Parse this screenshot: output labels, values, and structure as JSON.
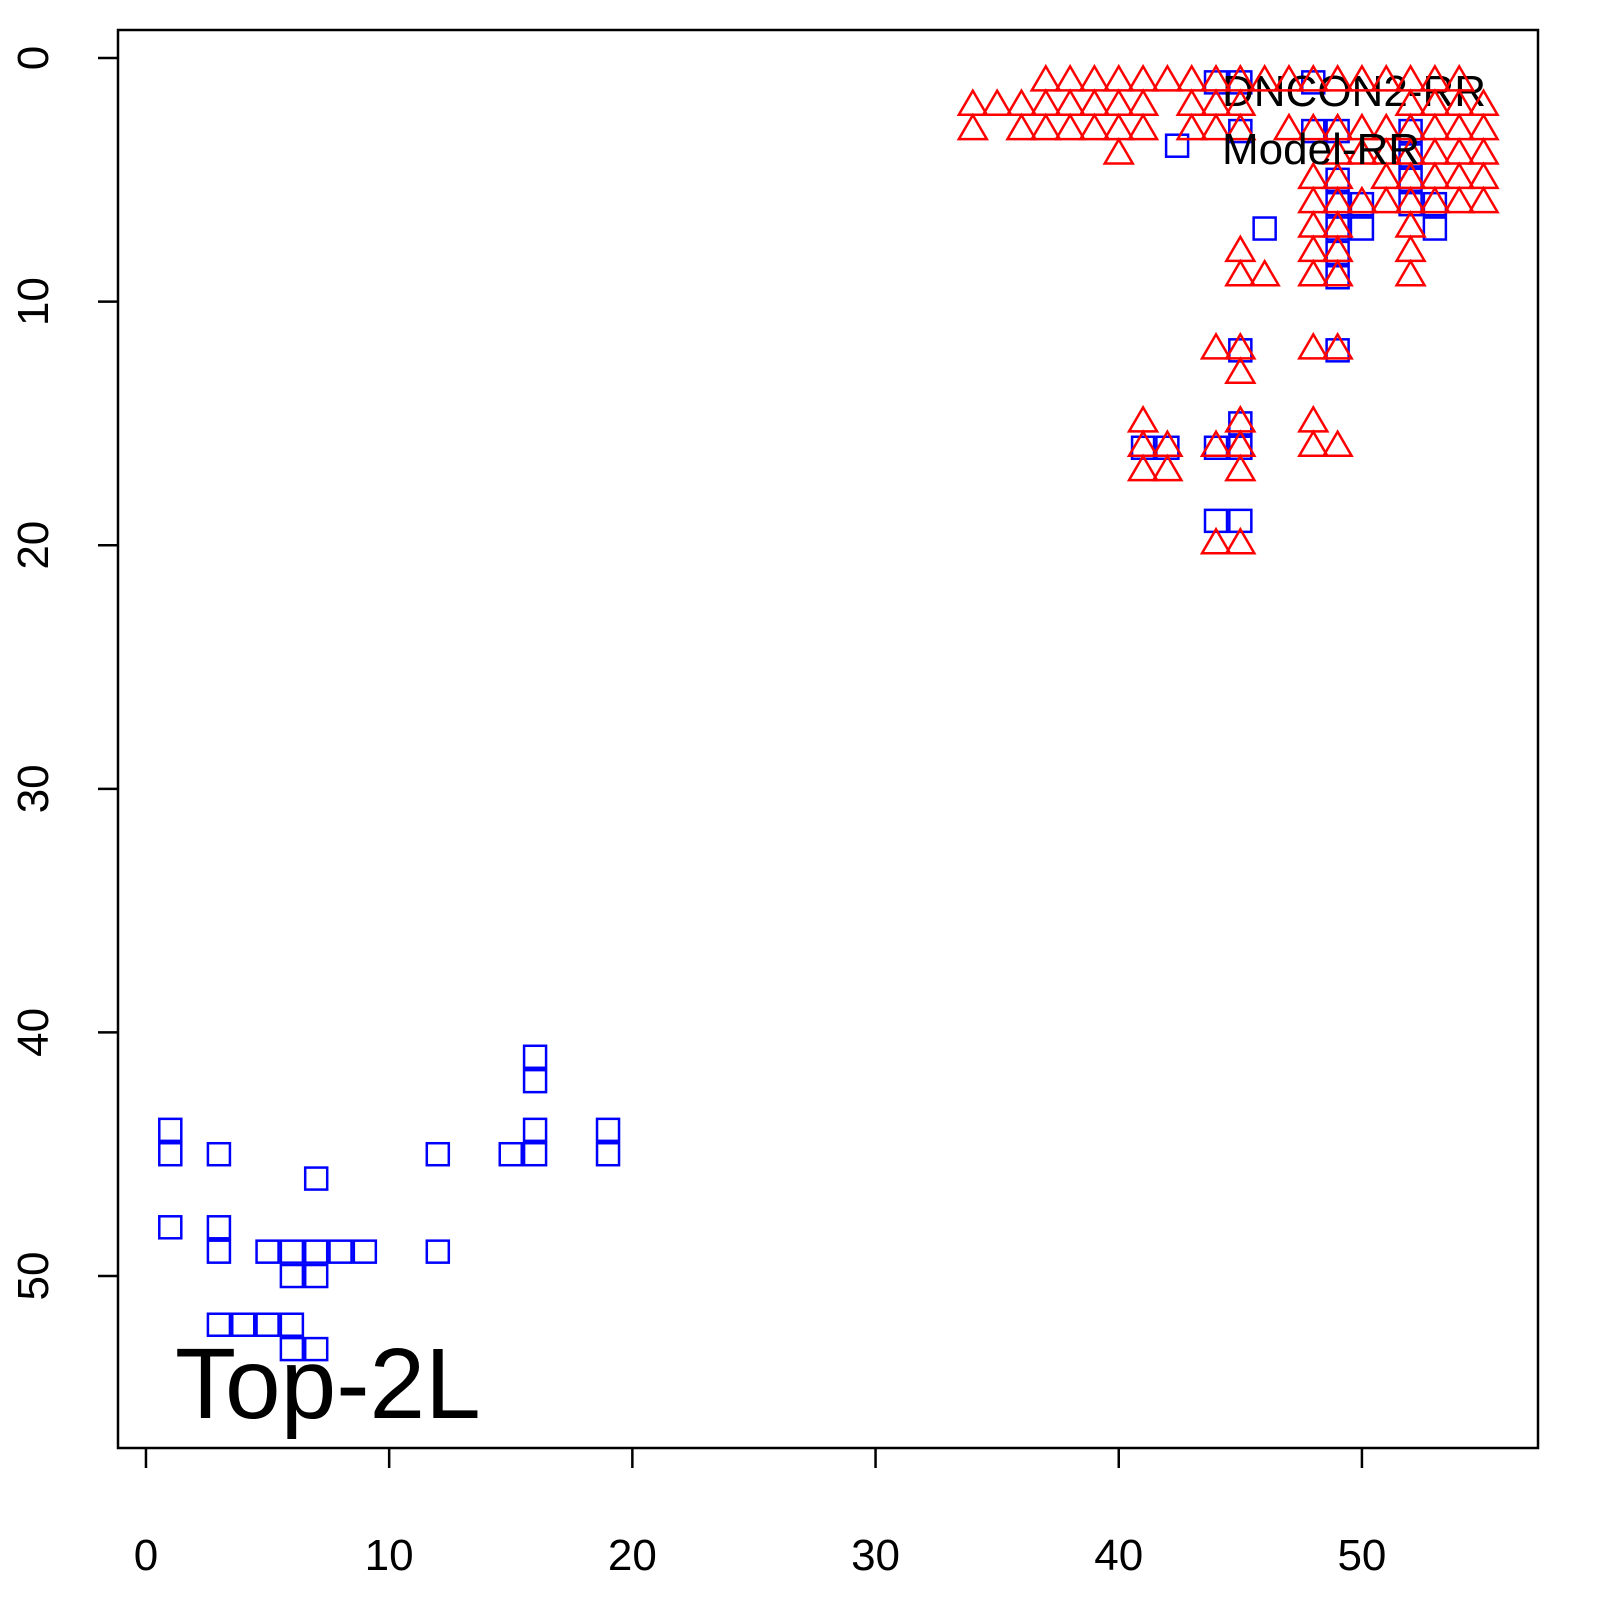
{
  "chart_data": {
    "type": "scatter",
    "annotation": "Top-2L",
    "xlim": [
      -1.15,
      57.24
    ],
    "xticks": [
      0,
      10,
      20,
      30,
      40,
      50
    ],
    "ylim": [
      57.06,
      -1.15
    ],
    "yticks": [
      0,
      10,
      20,
      30,
      40,
      50
    ],
    "series": [
      {
        "name": "DNCON2-RR",
        "color": "#0000ff",
        "marker": "square",
        "x": [
          1,
          1,
          1,
          3,
          3,
          3,
          7,
          5,
          6,
          7,
          8,
          9,
          6,
          7,
          3,
          4,
          5,
          6,
          6,
          7,
          12,
          12,
          15,
          16,
          16,
          16,
          16,
          19,
          19,
          44,
          45,
          48,
          45,
          42.4,
          48,
          49,
          52,
          52,
          52,
          49,
          49,
          50,
          52,
          53,
          49,
          50,
          53,
          46,
          49,
          49,
          45,
          49,
          41,
          42,
          44,
          45,
          45,
          44,
          45
        ],
        "values": [
          44,
          45,
          48,
          45,
          48,
          49,
          46,
          49,
          49,
          49,
          49,
          49,
          50,
          50,
          52,
          52,
          52,
          52,
          53,
          53,
          45,
          49,
          45,
          41,
          42,
          44,
          45,
          44,
          45,
          1,
          1,
          1,
          3,
          3.6,
          3,
          3,
          3,
          4,
          5,
          5,
          6,
          6,
          6,
          6,
          7,
          7,
          7,
          7,
          8,
          9,
          12,
          12,
          16,
          16,
          16,
          16,
          15,
          19,
          19
        ]
      },
      {
        "name": "Model-RR",
        "color": "#ff0000",
        "marker": "triangle",
        "x": [
          37,
          38,
          39,
          40,
          41,
          42,
          43,
          44,
          45,
          46,
          47,
          48,
          49,
          50,
          51,
          52,
          53,
          54,
          34,
          35,
          36,
          37,
          38,
          39,
          40,
          41,
          43,
          44,
          45,
          52,
          53,
          54,
          55,
          34,
          36,
          37,
          38,
          39,
          40,
          41,
          43,
          44,
          45,
          47,
          48,
          49,
          50,
          51,
          52,
          53,
          54,
          55,
          40,
          49,
          50,
          51,
          52,
          53,
          54,
          55,
          48,
          49,
          51,
          52,
          53,
          54,
          55,
          48,
          49,
          50,
          51,
          52,
          53,
          54,
          55,
          48,
          49,
          52,
          45,
          48,
          49,
          52,
          45,
          46,
          48,
          49,
          52,
          44,
          45,
          48,
          49,
          45,
          41,
          45,
          48,
          41,
          42,
          44,
          45,
          48,
          49,
          41,
          42,
          45,
          44,
          45
        ],
        "values": [
          1,
          1,
          1,
          1,
          1,
          1,
          1,
          1,
          1,
          1,
          1,
          1,
          1,
          1,
          1,
          1,
          1,
          1,
          2,
          2,
          2,
          2,
          2,
          2,
          2,
          2,
          2,
          2,
          2,
          2,
          2,
          2,
          2,
          3,
          3,
          3,
          3,
          3,
          3,
          3,
          3,
          3,
          3,
          3,
          3,
          3,
          3,
          3,
          3,
          3,
          3,
          3,
          4,
          4,
          4,
          4,
          4,
          4,
          4,
          4,
          5,
          5,
          5,
          5,
          5,
          5,
          5,
          6,
          6,
          6,
          6,
          6,
          6,
          6,
          6,
          7,
          7,
          7,
          8,
          8,
          8,
          8,
          9,
          9,
          9,
          9,
          9,
          12,
          12,
          12,
          12,
          13,
          15,
          15,
          15,
          16,
          16,
          16,
          16,
          16,
          16,
          17,
          17,
          17,
          20,
          20
        ]
      }
    ]
  }
}
